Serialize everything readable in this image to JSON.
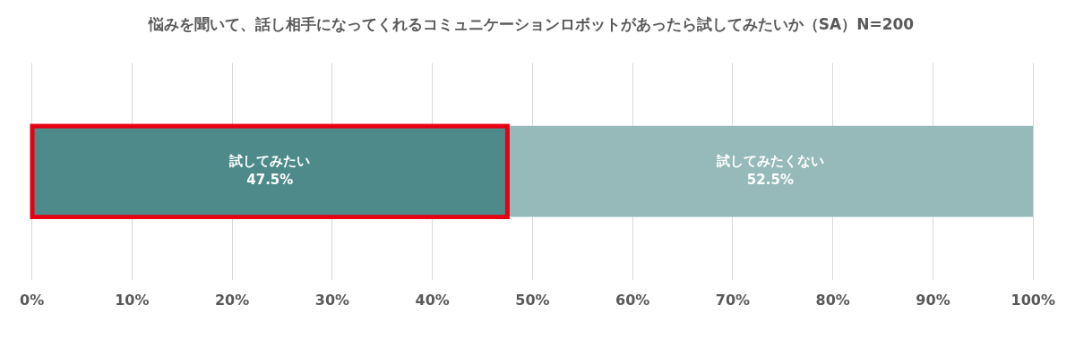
{
  "chart_data": {
    "type": "bar",
    "title": "悩みを聞いて、話し相手になってくれるコミュニケーションロボットがあったら試してみたいか（SA）N=200",
    "orientation": "horizontal",
    "stacked": true,
    "categories": [
      null
    ],
    "series": [
      {
        "name": "試してみたい",
        "color": "#4e8a8a",
        "values": [
          47.5
        ],
        "value_labels": [
          "47.5%"
        ]
      },
      {
        "name": "試してみたくない",
        "color": "#96b9b9",
        "values": [
          52.5
        ],
        "value_labels": [
          "52.5%"
        ]
      }
    ],
    "xlim": [
      0,
      100
    ],
    "xticks": [
      {
        "value": 0,
        "label": "0%"
      },
      {
        "value": 10,
        "label": "10%"
      },
      {
        "value": 20,
        "label": "20%"
      },
      {
        "value": 30,
        "label": "30%"
      },
      {
        "value": 40,
        "label": "40%"
      },
      {
        "value": 50,
        "label": "50%"
      },
      {
        "value": 60,
        "label": "60%"
      },
      {
        "value": 70,
        "label": "70%"
      },
      {
        "value": 80,
        "label": "80%"
      },
      {
        "value": 90,
        "label": "90%"
      },
      {
        "value": 100,
        "label": "100%"
      }
    ],
    "grid": "x",
    "legend": false
  }
}
